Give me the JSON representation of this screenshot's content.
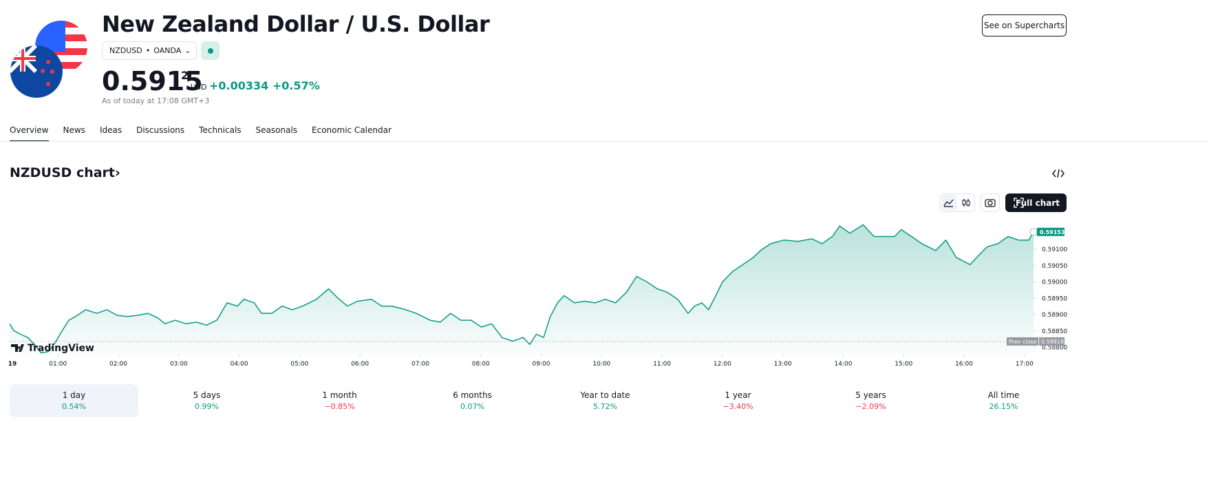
{
  "header": {
    "title": "New Zealand Dollar / U.S. Dollar",
    "symbol": "NZDUSD",
    "exchange": "OANDA",
    "price": "0.5915",
    "price_last_digit": "2",
    "currency": "USD",
    "change": "+0.00334",
    "change_percent": "+0.57%",
    "timestamp": "As of today at 17:08 GMT+3",
    "button": "See on Supercharts"
  },
  "tabs": [
    "Overview",
    "News",
    "Ideas",
    "Discussions",
    "Technicals",
    "Seasonals",
    "Economic Calendar"
  ],
  "section_title": "NZDUSD chart›",
  "full_chart_button": "Full chart",
  "watermark": "TradingView",
  "chart_data": {
    "type": "area",
    "color": "#089981",
    "x": [
      0.2,
      0.27,
      0.38,
      0.5,
      0.61,
      0.72,
      0.84,
      0.95,
      1.07,
      1.18,
      1.29,
      1.46,
      1.64,
      1.81,
      1.98,
      2.15,
      2.32,
      2.49,
      2.66,
      2.77,
      2.94,
      3.12,
      3.29,
      3.46,
      3.63,
      3.8,
      3.97,
      4.08,
      4.25,
      4.37,
      4.54,
      4.71,
      4.88,
      5.05,
      5.28,
      5.48,
      5.62,
      5.79,
      5.96,
      6.19,
      6.36,
      6.53,
      6.76,
      6.93,
      7.16,
      7.33,
      7.5,
      7.67,
      7.84,
      8.01,
      8.18,
      8.35,
      8.53,
      8.7,
      8.81,
      8.92,
      9.04,
      9.15,
      9.27,
      9.38,
      9.55,
      9.72,
      9.89,
      10.06,
      10.23,
      10.41,
      10.58,
      10.75,
      10.92,
      11.09,
      11.26,
      11.43,
      11.54,
      11.66,
      11.77,
      11.89,
      12.0,
      12.17,
      12.34,
      12.51,
      12.63,
      12.8,
      13.02,
      13.25,
      13.48,
      13.65,
      13.82,
      13.94,
      14.11,
      14.33,
      14.51,
      14.68,
      14.85,
      14.96,
      15.13,
      15.3,
      15.53,
      15.7,
      15.87,
      16.1,
      16.21,
      16.38,
      16.56,
      16.73,
      16.9,
      17.07,
      17.15
    ],
    "values": [
      0.58872,
      0.58851,
      0.5884,
      0.5883,
      0.58809,
      0.58783,
      0.58787,
      0.58813,
      0.58851,
      0.58883,
      0.58894,
      0.58915,
      0.58904,
      0.58915,
      0.58898,
      0.58894,
      0.58898,
      0.58904,
      0.58889,
      0.58872,
      0.58883,
      0.58872,
      0.58877,
      0.58868,
      0.58883,
      0.58936,
      0.58926,
      0.58947,
      0.58936,
      0.58904,
      0.58904,
      0.58926,
      0.58915,
      0.58926,
      0.58947,
      0.58979,
      0.58953,
      0.58926,
      0.58941,
      0.58947,
      0.58926,
      0.58926,
      0.58915,
      0.58904,
      0.58883,
      0.58877,
      0.58904,
      0.58883,
      0.58883,
      0.58862,
      0.58872,
      0.5883,
      0.58819,
      0.5883,
      0.58809,
      0.5884,
      0.5883,
      0.58894,
      0.58936,
      0.58958,
      0.58936,
      0.58941,
      0.58936,
      0.58947,
      0.58936,
      0.58968,
      0.59017,
      0.59,
      0.58979,
      0.58968,
      0.58947,
      0.58904,
      0.58926,
      0.58936,
      0.58915,
      0.58958,
      0.59,
      0.59032,
      0.59053,
      0.59075,
      0.59096,
      0.59117,
      0.59128,
      0.59124,
      0.59132,
      0.59117,
      0.59139,
      0.59171,
      0.59149,
      0.59175,
      0.59139,
      0.59139,
      0.59139,
      0.5916,
      0.59139,
      0.59117,
      0.59096,
      0.59128,
      0.59075,
      0.59053,
      0.59075,
      0.59107,
      0.59117,
      0.59139,
      0.59128,
      0.59128,
      0.59153
    ],
    "xlim": [
      0.2,
      17.15
    ],
    "ylim": [
      0.5878,
      0.5918
    ],
    "xticks": [
      {
        "value": 0,
        "label": "19"
      },
      {
        "value": 1,
        "label": "01:00"
      },
      {
        "value": 2,
        "label": "02:00"
      },
      {
        "value": 3,
        "label": "03:00"
      },
      {
        "value": 4,
        "label": "04:00"
      },
      {
        "value": 5,
        "label": "05:00"
      },
      {
        "value": 6,
        "label": "06:00"
      },
      {
        "value": 7,
        "label": "07:00"
      },
      {
        "value": 8,
        "label": "08:00"
      },
      {
        "value": 9,
        "label": "09:00"
      },
      {
        "value": 10,
        "label": "10:00"
      },
      {
        "value": 11,
        "label": "11:00"
      },
      {
        "value": 12,
        "label": "12:00"
      },
      {
        "value": 13,
        "label": "13:00"
      },
      {
        "value": 14,
        "label": "14:00"
      },
      {
        "value": 15,
        "label": "15:00"
      },
      {
        "value": 16,
        "label": "16:00"
      },
      {
        "value": 17,
        "label": "17:00"
      }
    ],
    "yticks": [
      {
        "value": 0.588,
        "label": "0.58800"
      },
      {
        "value": 0.5885,
        "label": "0.58850"
      },
      {
        "value": 0.589,
        "label": "0.58900"
      },
      {
        "value": 0.5895,
        "label": "0.58950"
      },
      {
        "value": 0.59,
        "label": "0.59000"
      },
      {
        "value": 0.5905,
        "label": "0.59050"
      },
      {
        "value": 0.591,
        "label": "0.59100"
      }
    ],
    "last_value": 0.59153,
    "prev_close": {
      "label": "Prev close",
      "value": 0.58818
    }
  },
  "periods": [
    {
      "label": "1 day",
      "change": "0.54%",
      "color": "#089981"
    },
    {
      "label": "5 days",
      "change": "0.99%",
      "color": "#089981"
    },
    {
      "label": "1 month",
      "change": "−0.85%",
      "color": "#f23645"
    },
    {
      "label": "6 months",
      "change": "0.07%",
      "color": "#089981"
    },
    {
      "label": "Year to date",
      "change": "5.72%",
      "color": "#089981"
    },
    {
      "label": "1 year",
      "change": "−3.40%",
      "color": "#f23645"
    },
    {
      "label": "5 years",
      "change": "−2.09%",
      "color": "#f23645"
    },
    {
      "label": "All time",
      "change": "26.15%",
      "color": "#089981"
    }
  ]
}
